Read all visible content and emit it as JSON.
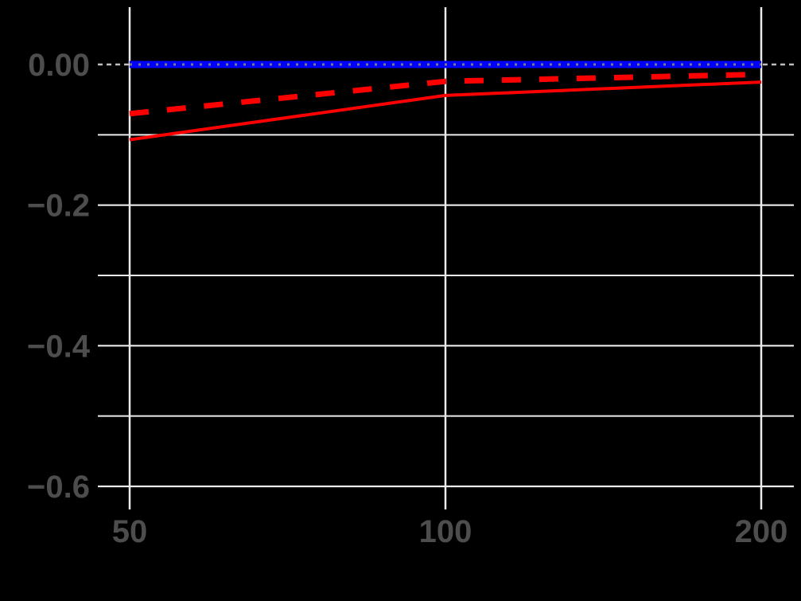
{
  "chart_data": {
    "type": "line",
    "title": "",
    "xlabel": "",
    "ylabel": "",
    "x_scale": "log",
    "x": [
      50,
      100,
      200
    ],
    "x_tick_labels": [
      "50",
      "100",
      "200"
    ],
    "y_tick_values": [
      0.0,
      -0.2,
      -0.4,
      -0.6
    ],
    "y_tick_labels": [
      "0.00",
      "−0.2",
      "−0.4",
      "−0.6"
    ],
    "y_minor_gridlines": [
      -0.1,
      -0.3,
      -0.5
    ],
    "ylim": [
      -0.625,
      0.08
    ],
    "grid": true,
    "legend": null,
    "reference_line": {
      "y": 0,
      "color": "#bebebe",
      "style": "dashed"
    },
    "series": [
      {
        "name": "blue-solid",
        "color": "#0000ff",
        "style": "solid",
        "values": [
          0.0,
          0.0,
          0.0
        ]
      },
      {
        "name": "gray-dotted-on-blue",
        "color": "#7f7f7f",
        "style": "dotted",
        "values": [
          0.0,
          0.0,
          0.0
        ]
      },
      {
        "name": "red-dashed",
        "color": "#ff0000",
        "style": "dashed",
        "values": [
          -0.07,
          -0.024,
          -0.014
        ]
      },
      {
        "name": "red-solid",
        "color": "#ff0000",
        "style": "solid",
        "values": [
          -0.107,
          -0.044,
          -0.025
        ]
      }
    ]
  },
  "colors": {
    "background": "#000000",
    "grid": "#ebebeb",
    "tick_text": "#4d4d4d"
  }
}
